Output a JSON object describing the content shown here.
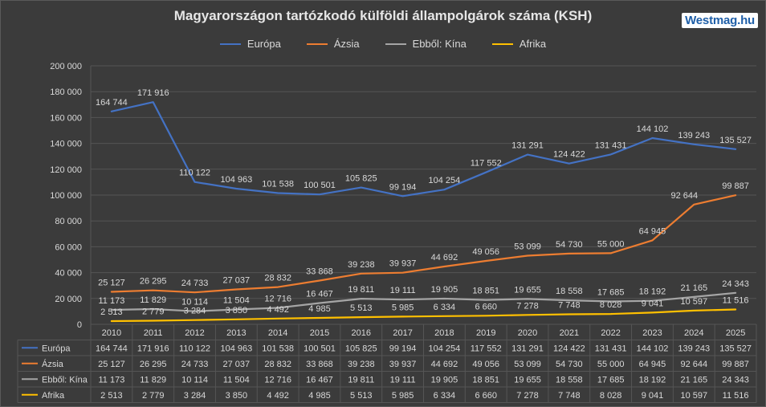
{
  "header": {
    "title": "Magyarországon tartózkodó külföldi állampolgárok száma (KSH)",
    "brand": "Westmag.hu"
  },
  "colors": {
    "europa": "#4472c4",
    "azsia": "#ed7d31",
    "kina": "#a5a5a5",
    "afrika": "#ffc000",
    "grid": "#555555",
    "background": "#3b3b3b",
    "text": "#d9d9d9"
  },
  "chart_data": {
    "type": "line",
    "title": "Magyarországon tartózkodó külföldi állampolgárok száma (KSH)",
    "xlabel": "",
    "ylabel": "",
    "ylim": [
      0,
      200000
    ],
    "yticks": [
      0,
      20000,
      40000,
      60000,
      80000,
      100000,
      120000,
      140000,
      160000,
      180000,
      200000
    ],
    "ytick_labels": [
      "0",
      "20 000",
      "40 000",
      "60 000",
      "80 000",
      "100 000",
      "120 000",
      "140 000",
      "160 000",
      "180 000",
      "200 000"
    ],
    "grid": true,
    "legend_position": "top-center",
    "data_table": true,
    "categories": [
      "2010",
      "2011",
      "2012",
      "2013",
      "2014",
      "2015",
      "2016",
      "2017",
      "2018",
      "2019",
      "2020",
      "2021",
      "2022",
      "2023",
      "2024",
      "2025"
    ],
    "series": [
      {
        "name": "Európa",
        "color_key": "europa",
        "values": [
          164744,
          171916,
          110122,
          104963,
          101538,
          100501,
          105825,
          99194,
          104254,
          117552,
          131291,
          124422,
          131431,
          144102,
          139243,
          135527
        ],
        "labels": [
          "164 744",
          "171 916",
          "110 122",
          "104 963",
          "101 538",
          "100 501",
          "105 825",
          "99 194",
          "104 254",
          "117 552",
          "131 291",
          "124 422",
          "131 431",
          "144 102",
          "139 243",
          "135 527"
        ]
      },
      {
        "name": "Ázsia",
        "color_key": "azsia",
        "values": [
          25127,
          26295,
          24733,
          27037,
          28832,
          33868,
          39238,
          39937,
          44692,
          49056,
          53099,
          54730,
          55000,
          64945,
          92644,
          99887
        ],
        "labels": [
          "25 127",
          "26 295",
          "24 733",
          "27 037",
          "28 832",
          "33 868",
          "39 238",
          "39 937",
          "44 692",
          "49 056",
          "53 099",
          "54 730",
          "55 000",
          "64 945",
          "92 644",
          "99 887"
        ]
      },
      {
        "name": "Ebből: Kína",
        "color_key": "kina",
        "values": [
          11173,
          11829,
          10114,
          11504,
          12716,
          16467,
          19811,
          19111,
          19905,
          18851,
          19655,
          18558,
          17685,
          18192,
          21165,
          24343
        ],
        "labels": [
          "11 173",
          "11 829",
          "10 114",
          "11 504",
          "12 716",
          "16 467",
          "19 811",
          "19 111",
          "19 905",
          "18 851",
          "19 655",
          "18 558",
          "17 685",
          "18 192",
          "21 165",
          "24 343"
        ]
      },
      {
        "name": "Afrika",
        "color_key": "afrika",
        "values": [
          2513,
          2779,
          3284,
          3850,
          4492,
          4985,
          5513,
          5985,
          6334,
          6660,
          7278,
          7748,
          8028,
          9041,
          10597,
          11516
        ],
        "labels": [
          "2 513",
          "2 779",
          "3 284",
          "3 850",
          "4 492",
          "4 985",
          "5 513",
          "5 985",
          "6 334",
          "6 660",
          "7 278",
          "7 748",
          "8 028",
          "9 041",
          "10 597",
          "11 516"
        ]
      }
    ]
  }
}
